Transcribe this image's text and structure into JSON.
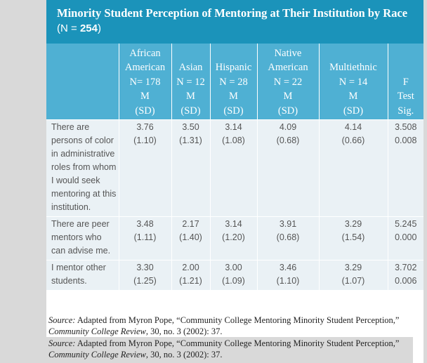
{
  "title": {
    "main": "Minority Student Perception of Mentoring at Their Institution by Race",
    "n_open": "(N = ",
    "n_value": "254",
    "n_close": ")"
  },
  "columns": [
    {
      "lines": [
        "",
        "",
        "",
        "",
        ""
      ]
    },
    {
      "lines": [
        "African",
        "American",
        "N= 178",
        "M",
        "(SD)"
      ]
    },
    {
      "lines": [
        "",
        "Asian",
        "N = 12",
        "M",
        "(SD)"
      ]
    },
    {
      "lines": [
        "",
        "Hispanic",
        "N = 28",
        "M",
        "(SD)"
      ]
    },
    {
      "lines": [
        "Native",
        "American",
        "N = 22",
        "M",
        "(SD)"
      ]
    },
    {
      "lines": [
        "",
        "Multiethnic",
        "N = 14",
        "M",
        "(SD)"
      ]
    },
    {
      "lines": [
        "",
        "",
        "F",
        "Test",
        "Sig."
      ]
    }
  ],
  "rows": [
    {
      "label": "There are persons of color in administrative roles from whom I would seek mentoring at this institution.",
      "cells": [
        {
          "m": "3.76",
          "sd": "(1.10)"
        },
        {
          "m": "3.50",
          "sd": "(1.31)"
        },
        {
          "m": "3.14",
          "sd": "(1.08)"
        },
        {
          "m": "4.09",
          "sd": "(0.68)"
        },
        {
          "m": "4.14",
          "sd": "(0.66)"
        },
        {
          "m": "3.508",
          "sd": "0.008"
        }
      ]
    },
    {
      "label": "There are peer mentors who can advise me.",
      "cells": [
        {
          "m": "3.48",
          "sd": "(1.11)"
        },
        {
          "m": "2.17",
          "sd": "(1.40)"
        },
        {
          "m": "3.14",
          "sd": "(1.20)"
        },
        {
          "m": "3.91",
          "sd": "(0.68)"
        },
        {
          "m": "3.29",
          "sd": "(1.54)"
        },
        {
          "m": "5.245",
          "sd": "0.000"
        }
      ]
    },
    {
      "label": "I mentor other students.",
      "cells": [
        {
          "m": "3.30",
          "sd": "(1.25)"
        },
        {
          "m": "2.00",
          "sd": "(1.21)"
        },
        {
          "m": "3.00",
          "sd": "(1.09)"
        },
        {
          "m": "3.46",
          "sd": "(1.10)"
        },
        {
          "m": "3.29",
          "sd": "(1.07)"
        },
        {
          "m": "3.702",
          "sd": "0.006"
        }
      ]
    }
  ],
  "source_1": {
    "label": "Source:",
    "text_before": " Adapted from Myron Pope, “Community College Mentoring Minority Student Perception,” ",
    "journal": "Community College Review",
    "text_after": ", 30, no. 3 (2002): 37."
  },
  "source_2": {
    "label": "Source:",
    "text_before": " Adapted from Myron Pope, “Community College Mentoring Minority Student Perception,” ",
    "journal": "Community College Review",
    "text_after": ", 30, no. 3 (2002): 37."
  },
  "colors": {
    "title_bg": "#1b93ba",
    "header_bg": "#4fb0d3",
    "body_bg": "#eaf1f5",
    "side_gray": "#d9d9d9"
  }
}
